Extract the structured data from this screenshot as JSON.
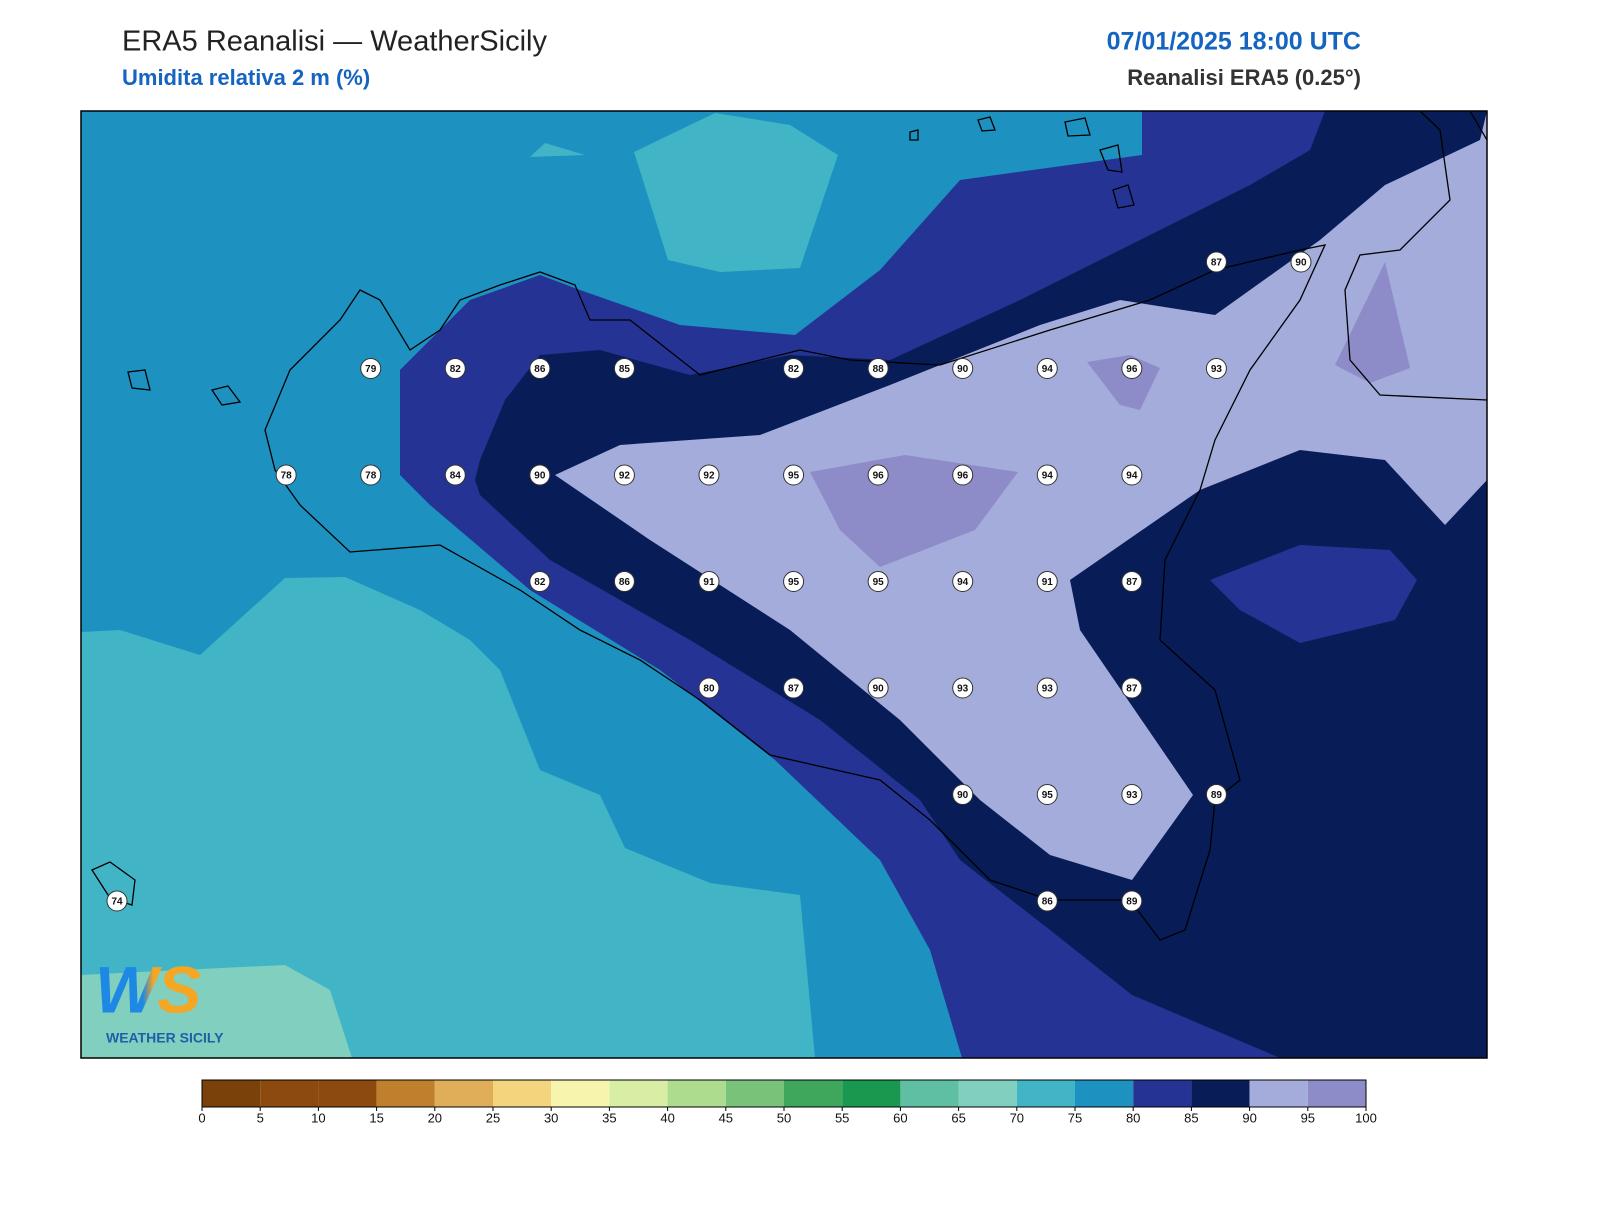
{
  "header": {
    "title": "ERA5 Reanalisi — WeatherSicily",
    "subtitle": "Umidita relativa 2 m (%)",
    "datetime": "07/01/2025 18:00 UTC",
    "source": "Reanalisi ERA5 (0.25°)"
  },
  "logo": {
    "letters": "WS",
    "text": "WEATHER SICILY"
  },
  "grid_values": [
    [
      null,
      null,
      null,
      null,
      null,
      null,
      null,
      null,
      null,
      null,
      null,
      null,
      null,
      87,
      90
    ],
    [
      null,
      null,
      null,
      79,
      82,
      86,
      85,
      null,
      82,
      88,
      90,
      94,
      96,
      93,
      null
    ],
    [
      null,
      null,
      78,
      78,
      84,
      90,
      92,
      92,
      95,
      96,
      96,
      94,
      94,
      null,
      null
    ],
    [
      null,
      null,
      null,
      null,
      null,
      82,
      86,
      91,
      95,
      95,
      94,
      91,
      87,
      null,
      null
    ],
    [
      null,
      null,
      null,
      null,
      null,
      null,
      null,
      80,
      87,
      90,
      93,
      93,
      87,
      null,
      null
    ],
    [
      null,
      null,
      null,
      null,
      null,
      null,
      null,
      null,
      null,
      null,
      90,
      95,
      93,
      89,
      null
    ],
    [
      74,
      null,
      null,
      null,
      null,
      null,
      null,
      null,
      null,
      null,
      null,
      86,
      89,
      null,
      null
    ]
  ],
  "colorbar": {
    "ticks": [
      0,
      5,
      10,
      15,
      20,
      25,
      30,
      35,
      40,
      45,
      50,
      55,
      60,
      65,
      70,
      75,
      80,
      85,
      90,
      95,
      100
    ],
    "colors": [
      "#7a420a",
      "#8c4a0e",
      "#8c4a0e",
      "#bf7f2c",
      "#e0ae58",
      "#f2d57c",
      "#f7f5ad",
      "#d9eea5",
      "#addc8f",
      "#78c27a",
      "#3fa75c",
      "#1a9850",
      "#5fbfa2",
      "#80cfbf",
      "#41b5c6",
      "#1d91c0",
      "#253494",
      "#081d58",
      "#a3acdb",
      "#8e8cc8"
    ]
  }
}
